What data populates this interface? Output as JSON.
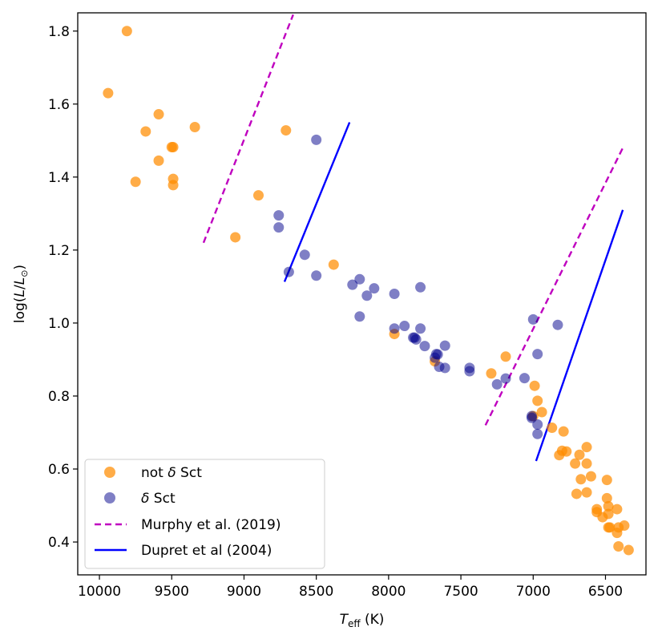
{
  "chart_data": {
    "type": "scatter",
    "xlabel": {
      "main": "T",
      "sub": "eff",
      "unit": " (K)"
    },
    "ylabel": {
      "pre": "log(",
      "L": "L",
      "slash": "/",
      "L2": "L",
      "sub": "⊙",
      "post": ")"
    },
    "x_reversed": true,
    "xlim": [
      10150,
      6220
    ],
    "ylim": [
      0.31,
      1.85
    ],
    "x_ticks": [
      {
        "value": 10000,
        "label": "10000"
      },
      {
        "value": 9500,
        "label": "9500"
      },
      {
        "value": 9000,
        "label": "9000"
      },
      {
        "value": 8500,
        "label": "8500"
      },
      {
        "value": 8000,
        "label": "8000"
      },
      {
        "value": 7500,
        "label": "7500"
      },
      {
        "value": 7000,
        "label": "7000"
      },
      {
        "value": 6500,
        "label": "6500"
      }
    ],
    "y_ticks": [
      {
        "value": 0.4,
        "label": "0.4"
      },
      {
        "value": 0.6,
        "label": "0.6"
      },
      {
        "value": 0.8,
        "label": "0.8"
      },
      {
        "value": 1.0,
        "label": "1.0"
      },
      {
        "value": 1.2,
        "label": "1.2"
      },
      {
        "value": 1.4,
        "label": "1.4"
      },
      {
        "value": 1.6,
        "label": "1.6"
      },
      {
        "value": 1.8,
        "label": "1.8"
      }
    ],
    "grid": false,
    "legend_position": "lower-left",
    "series": [
      {
        "name": "not δ Sct",
        "name_parts": {
          "pre": "not ",
          "italic": "δ",
          "post": " Sct"
        },
        "kind": "scatter",
        "color": "#ff8c00",
        "points": [
          [
            9940,
            1.63
          ],
          [
            9810,
            1.8
          ],
          [
            9750,
            1.387
          ],
          [
            9680,
            1.525
          ],
          [
            9590,
            1.572
          ],
          [
            9590,
            1.445
          ],
          [
            9500,
            1.482
          ],
          [
            9490,
            1.482
          ],
          [
            9490,
            1.395
          ],
          [
            9490,
            1.378
          ],
          [
            9340,
            1.537
          ],
          [
            9060,
            1.235
          ],
          [
            8900,
            1.35
          ],
          [
            8710,
            1.528
          ],
          [
            8380,
            1.16
          ],
          [
            7960,
            0.97
          ],
          [
            7680,
            0.895
          ],
          [
            7290,
            0.862
          ],
          [
            7190,
            0.908
          ],
          [
            6990,
            0.828
          ],
          [
            6970,
            0.787
          ],
          [
            6940,
            0.756
          ],
          [
            7000,
            0.745
          ],
          [
            6870,
            0.713
          ],
          [
            6790,
            0.703
          ],
          [
            6800,
            0.65
          ],
          [
            6770,
            0.648
          ],
          [
            6820,
            0.638
          ],
          [
            6630,
            0.66
          ],
          [
            6630,
            0.615
          ],
          [
            6710,
            0.615
          ],
          [
            6680,
            0.639
          ],
          [
            6670,
            0.572
          ],
          [
            6600,
            0.58
          ],
          [
            6700,
            0.532
          ],
          [
            6630,
            0.536
          ],
          [
            6490,
            0.57
          ],
          [
            6490,
            0.52
          ],
          [
            6420,
            0.49
          ],
          [
            6560,
            0.49
          ],
          [
            6560,
            0.482
          ],
          [
            6520,
            0.468
          ],
          [
            6480,
            0.498
          ],
          [
            6480,
            0.477
          ],
          [
            6480,
            0.44
          ],
          [
            6470,
            0.44
          ],
          [
            6410,
            0.44
          ],
          [
            6420,
            0.425
          ],
          [
            6370,
            0.445
          ],
          [
            6410,
            0.388
          ],
          [
            6340,
            0.378
          ]
        ]
      },
      {
        "name": "δ Sct",
        "name_parts": {
          "pre": "",
          "italic": "δ",
          "post": " Sct"
        },
        "kind": "scatter",
        "color": "#00008b",
        "points": [
          [
            8500,
            1.502
          ],
          [
            8760,
            1.295
          ],
          [
            8760,
            1.262
          ],
          [
            8690,
            1.14
          ],
          [
            8580,
            1.187
          ],
          [
            8500,
            1.13
          ],
          [
            8250,
            1.105
          ],
          [
            8200,
            1.12
          ],
          [
            8200,
            1.018
          ],
          [
            8150,
            1.075
          ],
          [
            8100,
            1.095
          ],
          [
            7960,
            1.08
          ],
          [
            7960,
            0.985
          ],
          [
            7780,
            1.098
          ],
          [
            7890,
            0.992
          ],
          [
            7830,
            0.96
          ],
          [
            7820,
            0.96
          ],
          [
            7810,
            0.955
          ],
          [
            7780,
            0.985
          ],
          [
            7750,
            0.937
          ],
          [
            7670,
            0.915
          ],
          [
            7680,
            0.905
          ],
          [
            7660,
            0.914
          ],
          [
            7650,
            0.88
          ],
          [
            7610,
            0.877
          ],
          [
            7610,
            0.938
          ],
          [
            7440,
            0.877
          ],
          [
            7440,
            0.868
          ],
          [
            7250,
            0.832
          ],
          [
            7190,
            0.848
          ],
          [
            7060,
            0.849
          ],
          [
            7000,
            1.01
          ],
          [
            6830,
            0.995
          ],
          [
            6970,
            0.915
          ],
          [
            7010,
            0.745
          ],
          [
            7010,
            0.74
          ],
          [
            6970,
            0.722
          ],
          [
            6970,
            0.696
          ]
        ]
      },
      {
        "name": "Murphy et al. (2019)",
        "kind": "line",
        "dash": true,
        "color": "#bf00bf",
        "segments": [
          [
            [
              9280,
              1.22
            ],
            [
              8660,
              1.845
            ]
          ],
          [
            [
              7330,
              0.72
            ],
            [
              6380,
              1.48
            ]
          ]
        ]
      },
      {
        "name": "Dupret et al (2004)",
        "kind": "line",
        "dash": false,
        "color": "#0000ff",
        "segments": [
          [
            [
              8720,
              1.113
            ],
            [
              8270,
              1.55
            ]
          ],
          [
            [
              6980,
              0.622
            ],
            [
              6380,
              1.31
            ]
          ]
        ]
      }
    ]
  }
}
